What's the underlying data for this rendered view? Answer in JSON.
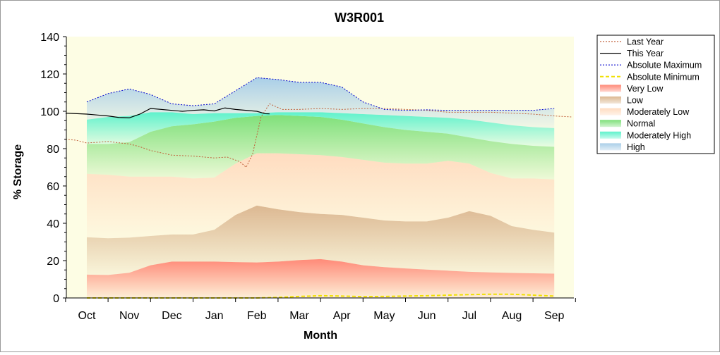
{
  "chart_data": {
    "type": "area",
    "title": "W3R001",
    "xlabel": "Month",
    "ylabel": "% Storage",
    "ylim": [
      0,
      140
    ],
    "yticks": [
      0,
      20,
      40,
      60,
      80,
      100,
      120,
      140
    ],
    "categories": [
      "Oct",
      "Nov",
      "Dec",
      "Jan",
      "Feb",
      "Mar",
      "Apr",
      "May",
      "Jun",
      "Jul",
      "Aug",
      "Sep"
    ],
    "grid": false,
    "legend_position": "right",
    "band_x": [
      0,
      0.5,
      1,
      1.5,
      2,
      2.5,
      3,
      3.5,
      4,
      4.5,
      5,
      5.5,
      6,
      6.5,
      7,
      7.5,
      8,
      8.5,
      9,
      9.5,
      10,
      10.5,
      11
    ],
    "bands": [
      {
        "name": "Very Low",
        "color": "#ff8a78",
        "lower": [
          0,
          0,
          0,
          0,
          0,
          0,
          0,
          0,
          0,
          0,
          0,
          0,
          0,
          0,
          0,
          0,
          0,
          0,
          0,
          0,
          0,
          0,
          0
        ],
        "upper": [
          12.5,
          12.3,
          13.5,
          17.5,
          19.5,
          19.5,
          19.5,
          19.2,
          19.0,
          19.5,
          20.3,
          20.8,
          19.5,
          17.5,
          16.5,
          15.8,
          15.2,
          14.6,
          14.0,
          13.7,
          13.4,
          13.2,
          13.0
        ]
      },
      {
        "name": "Low",
        "color": "#dcb892",
        "lower": [
          12.5,
          12.3,
          13.5,
          17.5,
          19.5,
          19.5,
          19.5,
          19.2,
          19.0,
          19.5,
          20.3,
          20.8,
          19.5,
          17.5,
          16.5,
          15.8,
          15.2,
          14.6,
          14.0,
          13.7,
          13.4,
          13.2,
          13.0
        ],
        "upper": [
          32.5,
          32.0,
          32.3,
          33.2,
          34.0,
          34.0,
          36.5,
          44.5,
          49.5,
          47.5,
          46.0,
          45.0,
          44.5,
          43.0,
          41.5,
          41.0,
          41.0,
          43.0,
          46.5,
          44.0,
          38.5,
          36.5,
          35.0
        ]
      },
      {
        "name": "Moderately Low",
        "color": "#ffdcc0",
        "lower": [
          32.5,
          32.0,
          32.3,
          33.2,
          34.0,
          34.0,
          36.5,
          44.5,
          49.5,
          47.5,
          46.0,
          45.0,
          44.5,
          43.0,
          41.5,
          41.0,
          41.0,
          43.0,
          46.5,
          44.0,
          38.5,
          36.5,
          35.0
        ],
        "upper": [
          66.5,
          66.0,
          65.0,
          65.0,
          65.0,
          64.0,
          64.5,
          72.0,
          77.5,
          77.5,
          77.0,
          76.5,
          75.5,
          74.0,
          72.5,
          72.0,
          72.0,
          73.5,
          72.0,
          67.0,
          64.0,
          64.0,
          63.5
        ]
      },
      {
        "name": "Normal",
        "color": "#7fe07a",
        "lower": [
          66.5,
          66.0,
          65.0,
          65.0,
          65.0,
          64.0,
          64.5,
          72.0,
          77.5,
          77.5,
          77.0,
          76.5,
          75.5,
          74.0,
          72.5,
          72.0,
          72.0,
          73.5,
          72.0,
          67.0,
          64.0,
          64.0,
          63.5
        ],
        "upper": [
          82.5,
          82.5,
          83.5,
          89.0,
          92.0,
          93.0,
          94.5,
          96.5,
          97.5,
          98.0,
          97.5,
          97.0,
          95.5,
          93.5,
          91.5,
          90.0,
          89.0,
          88.0,
          86.0,
          84.0,
          82.5,
          81.5,
          81.0
        ]
      },
      {
        "name": "Moderately High",
        "color": "#5ff2cc",
        "lower": [
          82.5,
          82.5,
          83.5,
          89.0,
          92.0,
          93.0,
          94.5,
          96.5,
          97.5,
          98.0,
          97.5,
          97.0,
          95.5,
          93.5,
          91.5,
          90.0,
          89.0,
          88.0,
          86.0,
          84.0,
          82.5,
          81.5,
          81.0
        ],
        "upper": [
          95.5,
          97.0,
          97.5,
          99.5,
          99.5,
          98.5,
          99.0,
          99.0,
          99.0,
          99.5,
          99.5,
          99.5,
          99.0,
          98.5,
          98.0,
          97.5,
          97.0,
          96.5,
          95.5,
          94.0,
          92.5,
          91.5,
          91.0
        ]
      },
      {
        "name": "High",
        "color": "#aacfe8",
        "lower": [
          95.5,
          97.0,
          97.5,
          99.5,
          99.5,
          98.5,
          99.0,
          99.0,
          99.0,
          99.5,
          99.5,
          99.5,
          99.0,
          98.5,
          98.0,
          97.5,
          97.0,
          96.5,
          95.5,
          94.0,
          92.5,
          91.5,
          91.0
        ],
        "upper": [
          105.0,
          109.5,
          112.0,
          109.0,
          104.0,
          103.0,
          104.0,
          111.0,
          118.0,
          117.0,
          115.5,
          115.5,
          113.0,
          105.0,
          101.0,
          100.5,
          100.8,
          100.5,
          100.5,
          100.5,
          100.5,
          100.5,
          101.5
        ]
      }
    ],
    "lines": [
      {
        "name": "Last Year",
        "color": "#c0603a",
        "dash": "2,2",
        "width": 1,
        "x": [
          -0.5,
          -0.25,
          0,
          0.5,
          1,
          1.25,
          1.5,
          2,
          2.5,
          3,
          3.3,
          3.6,
          3.75,
          3.9,
          4.1,
          4.3,
          4.6,
          5,
          5.5,
          6,
          6.5,
          7,
          7.5,
          8,
          8.5,
          9,
          9.5,
          10,
          10.5,
          11,
          11.4
        ],
        "y": [
          85,
          84.5,
          83,
          83.8,
          82.5,
          81,
          79,
          76.5,
          76,
          75,
          75.5,
          73,
          70,
          77,
          97,
          104,
          101,
          101,
          101.5,
          101,
          101.5,
          101.5,
          101,
          100.5,
          99.5,
          99.5,
          99.5,
          99,
          98.5,
          97.5,
          97
        ]
      },
      {
        "name": "This Year",
        "color": "#000000",
        "dash": "",
        "width": 1.2,
        "x": [
          -0.5,
          0,
          0.25,
          0.5,
          0.75,
          1,
          1.25,
          1.5,
          2,
          2.25,
          2.5,
          2.75,
          3,
          3.25,
          3.5,
          4,
          4.2,
          4.3
        ],
        "y": [
          99,
          98.5,
          98,
          97.5,
          96.7,
          96.5,
          98.5,
          101.5,
          100.5,
          100,
          100.5,
          100.8,
          100.2,
          101.8,
          101,
          100,
          98.7,
          98.6
        ]
      },
      {
        "name": "Absolute Maximum",
        "color": "#0000cc",
        "dash": "2,2",
        "width": 1,
        "x": [
          0,
          0.5,
          1,
          1.5,
          2,
          2.5,
          3,
          3.5,
          4,
          4.5,
          5,
          5.5,
          6,
          6.5,
          7,
          7.5,
          8,
          8.5,
          9,
          9.5,
          10,
          10.5,
          11
        ],
        "y": [
          105.0,
          109.5,
          112.0,
          109.0,
          104.0,
          103.0,
          104.0,
          111.0,
          118.0,
          117.0,
          115.5,
          115.5,
          113.0,
          105.0,
          101.0,
          100.5,
          100.8,
          100.5,
          100.5,
          100.5,
          100.5,
          100.5,
          101.5
        ]
      },
      {
        "name": "Absolute Minimum",
        "color": "#f0e000",
        "dash": "5,3",
        "width": 2,
        "x": [
          0,
          1,
          2,
          3,
          4,
          4.5,
          5,
          5.5,
          6,
          6.5,
          7,
          7.5,
          8,
          8.5,
          9,
          9.5,
          10,
          10.5,
          11
        ],
        "y": [
          0,
          0,
          0,
          0,
          0,
          0.3,
          0.8,
          1.2,
          1.0,
          0.7,
          0.8,
          1.0,
          1.2,
          1.5,
          1.8,
          2.0,
          2.0,
          1.5,
          1.0
        ]
      }
    ],
    "legend": [
      {
        "label": "Last Year",
        "kind": "line",
        "color": "#c0603a",
        "dash": "2,2"
      },
      {
        "label": "This Year",
        "kind": "line",
        "color": "#000000",
        "dash": ""
      },
      {
        "label": "Absolute Maximum",
        "kind": "line",
        "color": "#0000cc",
        "dash": "2,2"
      },
      {
        "label": "Absolute Minimum",
        "kind": "line",
        "color": "#f0e000",
        "dash": "5,3"
      },
      {
        "label": "Very Low",
        "kind": "swatch",
        "color": "#ff8a78"
      },
      {
        "label": "Low",
        "kind": "swatch",
        "color": "#dcb892"
      },
      {
        "label": "Moderately Low",
        "kind": "swatch",
        "color": "#ffdcc0"
      },
      {
        "label": "Normal",
        "kind": "swatch",
        "color": "#7fe07a"
      },
      {
        "label": "Moderately High",
        "kind": "swatch",
        "color": "#5ff2cc"
      },
      {
        "label": "High",
        "kind": "swatch",
        "color": "#aacfe8"
      }
    ],
    "colors": {
      "plot_background": "#fdfde4",
      "axis": "#000000"
    }
  }
}
